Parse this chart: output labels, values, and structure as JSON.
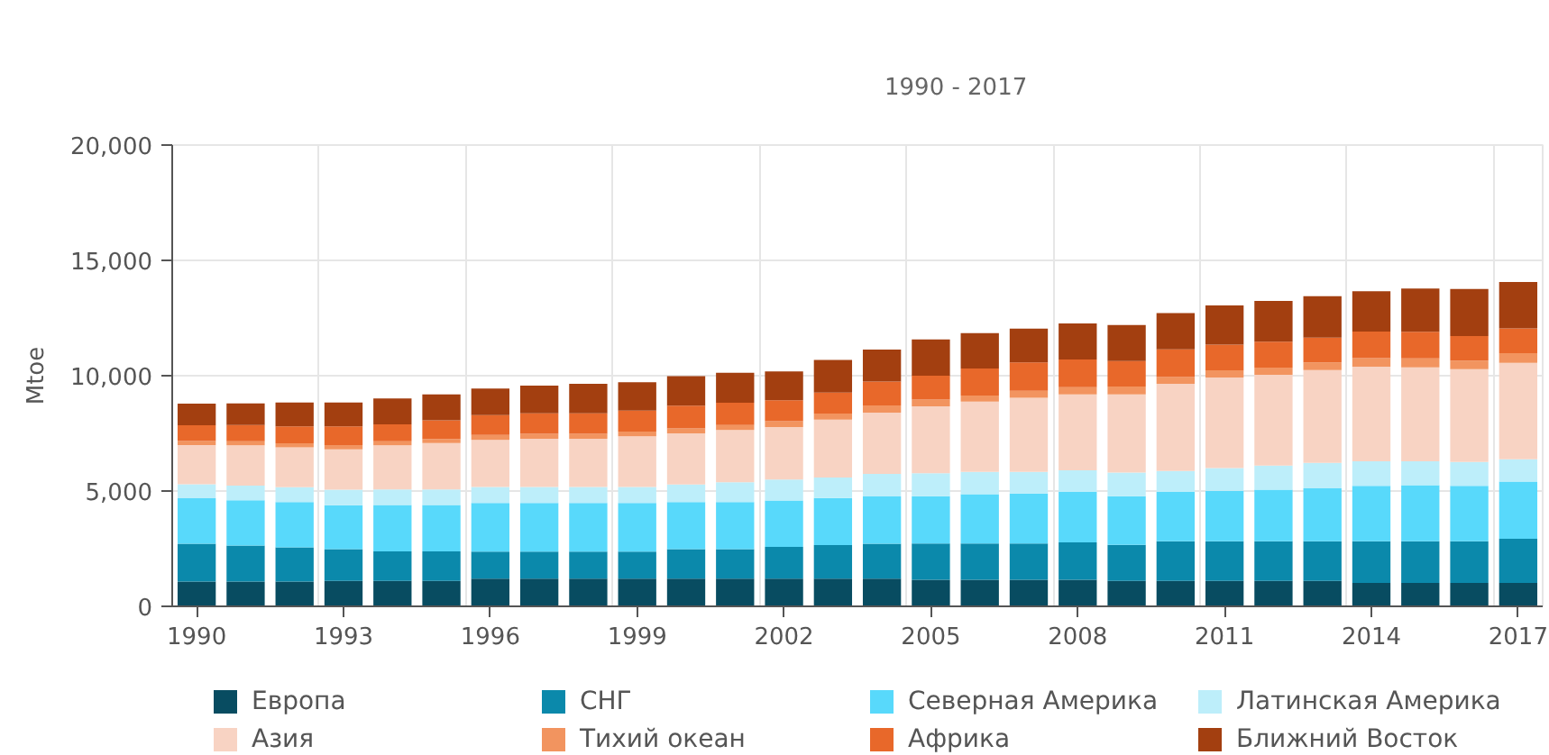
{
  "chart_data": {
    "type": "bar",
    "title": "1990 - 2017",
    "ylabel": "Mtoe",
    "stacked": true,
    "grid": true,
    "legend": "bottom",
    "x": [
      1990,
      1991,
      1992,
      1993,
      1994,
      1995,
      1996,
      1997,
      1998,
      1999,
      2000,
      2001,
      2002,
      2003,
      2004,
      2005,
      2006,
      2007,
      2008,
      2009,
      2010,
      2011,
      2012,
      2013,
      2014,
      2015,
      2016,
      2017
    ],
    "xlim": [
      1989.5,
      2017.5
    ],
    "xticks": [
      1990,
      1993,
      1996,
      1999,
      2002,
      2005,
      2008,
      2011,
      2014,
      2017
    ],
    "ylim": [
      0,
      20000
    ],
    "yticks": [
      0,
      {
        "value": 5000,
        "label": "5,000"
      },
      {
        "value": 10000,
        "label": "10,000"
      },
      {
        "value": 15000,
        "label": "15,000"
      },
      {
        "value": 20000,
        "label": "20,000"
      }
    ],
    "series": [
      {
        "name": "Европа",
        "color": "#084c61",
        "values": [
          1070,
          1070,
          1070,
          1100,
          1100,
          1100,
          1200,
          1200,
          1200,
          1200,
          1200,
          1200,
          1200,
          1200,
          1200,
          1150,
          1150,
          1150,
          1150,
          1100,
          1100,
          1100,
          1100,
          1100,
          1020,
          1020,
          1020,
          1020
        ]
      },
      {
        "name": "СНГ",
        "color": "#0b89ab",
        "values": [
          1640,
          1570,
          1490,
          1380,
          1280,
          1280,
          1170,
          1170,
          1170,
          1170,
          1280,
          1280,
          1380,
          1460,
          1510,
          1570,
          1570,
          1570,
          1620,
          1570,
          1720,
          1720,
          1720,
          1720,
          1800,
          1800,
          1800,
          1910
        ]
      },
      {
        "name": "Северная Америка",
        "color": "#58d9fb",
        "values": [
          1980,
          1960,
          1960,
          1900,
          2010,
          2010,
          2110,
          2110,
          2110,
          2110,
          2040,
          2040,
          2010,
          2040,
          2060,
          2060,
          2140,
          2170,
          2190,
          2110,
          2140,
          2190,
          2240,
          2300,
          2400,
          2430,
          2400,
          2480
        ]
      },
      {
        "name": "Латинская Америка",
        "color": "#bdeefa",
        "values": [
          600,
          630,
          650,
          680,
          680,
          680,
          700,
          700,
          700,
          700,
          760,
          860,
          910,
          890,
          970,
          990,
          970,
          940,
          940,
          1020,
          910,
          990,
          1040,
          1100,
          1070,
          1040,
          1040,
          970
        ]
      },
      {
        "name": "Азия",
        "color": "#f8d3c3",
        "values": [
          1700,
          1750,
          1720,
          1750,
          1910,
          2010,
          2040,
          2090,
          2090,
          2190,
          2220,
          2270,
          2270,
          2510,
          2660,
          2900,
          3050,
          3210,
          3290,
          3390,
          3780,
          3920,
          3940,
          4020,
          4100,
          4070,
          4020,
          4180
        ]
      },
      {
        "name": "Тихий океан",
        "color": "#f2945f",
        "values": [
          180,
          180,
          180,
          180,
          180,
          180,
          210,
          210,
          210,
          210,
          210,
          210,
          260,
          260,
          310,
          290,
          260,
          310,
          310,
          340,
          290,
          310,
          310,
          340,
          370,
          390,
          370,
          420
        ]
      },
      {
        "name": "Африка",
        "color": "#e8682a",
        "values": [
          680,
          700,
          730,
          810,
          730,
          810,
          860,
          890,
          890,
          910,
          990,
          970,
          910,
          910,
          1040,
          1040,
          1170,
          1230,
          1200,
          1100,
          1200,
          1120,
          1120,
          1070,
          1150,
          1150,
          1070,
          1070
        ]
      },
      {
        "name": "Ближний Восток",
        "color": "#a33f10",
        "values": [
          940,
          940,
          1040,
          1040,
          1120,
          1120,
          1150,
          1200,
          1280,
          1230,
          1280,
          1300,
          1250,
          1410,
          1380,
          1570,
          1540,
          1460,
          1570,
          1570,
          1570,
          1700,
          1770,
          1800,
          1750,
          1880,
          2040,
          2010
        ]
      }
    ]
  }
}
